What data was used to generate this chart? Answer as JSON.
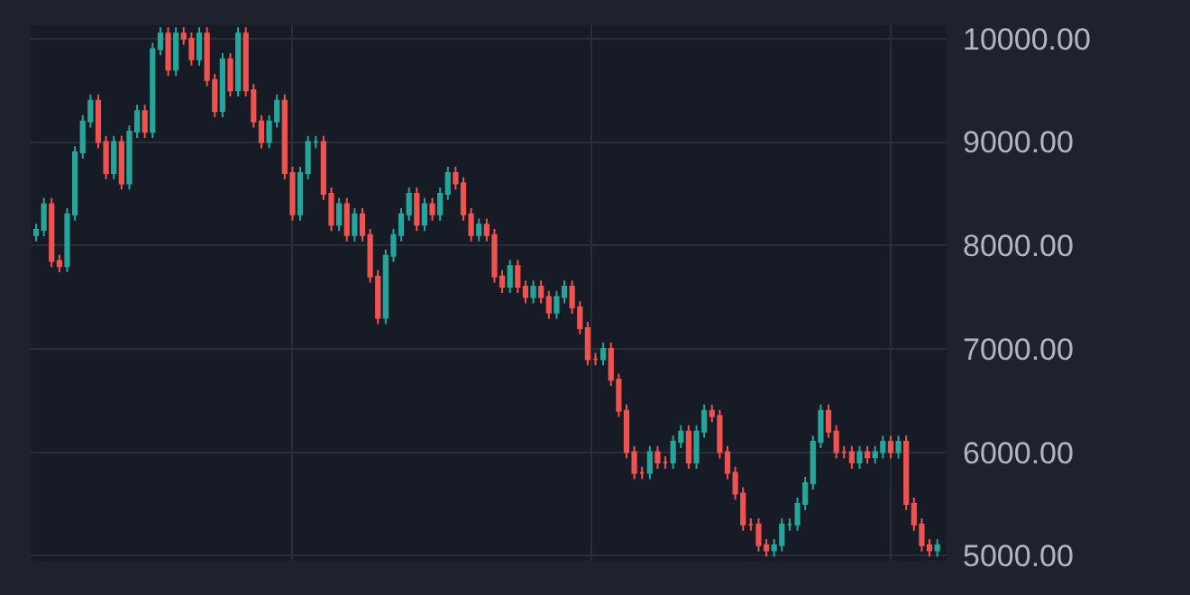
{
  "chart_data": {
    "type": "candlestick",
    "categories": [
      null,
      null,
      null,
      null,
      null,
      null,
      null,
      null,
      null,
      null,
      null,
      null,
      null,
      null,
      null,
      null,
      null,
      null,
      null,
      null,
      null,
      null,
      null,
      null,
      null,
      null,
      null,
      null,
      null,
      null,
      null,
      null,
      null,
      null,
      null,
      null,
      null,
      null,
      null,
      null,
      null,
      null,
      null,
      null,
      null,
      null,
      null,
      null,
      null,
      null,
      null,
      null,
      null,
      null,
      null,
      null,
      null,
      null,
      null,
      null,
      null,
      null,
      null,
      null,
      null,
      null,
      null,
      null,
      null,
      null,
      null,
      null,
      null,
      null,
      null,
      null,
      null,
      null,
      null,
      null,
      null,
      null,
      null,
      null,
      null,
      null,
      null,
      null,
      null,
      null,
      null,
      null,
      null,
      null,
      null,
      null,
      null,
      null,
      null,
      null,
      null,
      null,
      null,
      null,
      null,
      null,
      null,
      null,
      null,
      null,
      null,
      null,
      null,
      null,
      null,
      null,
      null
    ],
    "ohlc": [
      [
        8100,
        8210,
        8040,
        8150
      ],
      [
        8150,
        8460,
        8090,
        8400
      ],
      [
        8400,
        8460,
        7790,
        7850
      ],
      [
        7850,
        7910,
        7740,
        7800
      ],
      [
        7800,
        8360,
        7740,
        8300
      ],
      [
        8300,
        8960,
        8240,
        8900
      ],
      [
        8900,
        9260,
        8840,
        9200
      ],
      [
        9200,
        9460,
        9140,
        9400
      ],
      [
        9400,
        9460,
        8940,
        9000
      ],
      [
        9000,
        9060,
        8640,
        8700
      ],
      [
        8700,
        9060,
        8640,
        9000
      ],
      [
        9000,
        9060,
        8540,
        8600
      ],
      [
        8600,
        9160,
        8540,
        9100
      ],
      [
        9100,
        9360,
        9040,
        9300
      ],
      [
        9300,
        9360,
        9040,
        9100
      ],
      [
        9100,
        9960,
        9040,
        9900
      ],
      [
        9900,
        10110,
        9840,
        10050
      ],
      [
        10050,
        10110,
        9640,
        9700
      ],
      [
        9700,
        10110,
        9640,
        10050
      ],
      [
        10050,
        10110,
        9940,
        10000
      ],
      [
        10000,
        10060,
        9740,
        9800
      ],
      [
        9800,
        10110,
        9740,
        10050
      ],
      [
        10050,
        10110,
        9540,
        9600
      ],
      [
        9600,
        9660,
        9240,
        9300
      ],
      [
        9300,
        9860,
        9240,
        9800
      ],
      [
        9800,
        9860,
        9440,
        9500
      ],
      [
        9500,
        10110,
        9440,
        10050
      ],
      [
        10050,
        10110,
        9440,
        9500
      ],
      [
        9500,
        9560,
        9140,
        9200
      ],
      [
        9200,
        9260,
        8940,
        9000
      ],
      [
        9000,
        9260,
        8940,
        9200
      ],
      [
        9200,
        9460,
        9140,
        9400
      ],
      [
        9400,
        9460,
        8640,
        8700
      ],
      [
        8700,
        8760,
        8240,
        8300
      ],
      [
        8300,
        8760,
        8240,
        8700
      ],
      [
        8700,
        9060,
        8640,
        9000
      ],
      [
        9000,
        9060,
        8940,
        9000
      ],
      [
        9000,
        9060,
        8440,
        8500
      ],
      [
        8500,
        8560,
        8140,
        8200
      ],
      [
        8200,
        8460,
        8140,
        8400
      ],
      [
        8400,
        8460,
        8040,
        8100
      ],
      [
        8100,
        8360,
        8040,
        8300
      ],
      [
        8300,
        8360,
        8040,
        8100
      ],
      [
        8100,
        8160,
        7640,
        7700
      ],
      [
        7700,
        7760,
        7240,
        7300
      ],
      [
        7300,
        7960,
        7240,
        7900
      ],
      [
        7900,
        8160,
        7840,
        8100
      ],
      [
        8100,
        8360,
        8040,
        8300
      ],
      [
        8300,
        8560,
        8240,
        8500
      ],
      [
        8500,
        8560,
        8140,
        8200
      ],
      [
        8200,
        8460,
        8140,
        8400
      ],
      [
        8400,
        8460,
        8240,
        8300
      ],
      [
        8300,
        8560,
        8240,
        8500
      ],
      [
        8500,
        8760,
        8440,
        8700
      ],
      [
        8700,
        8760,
        8540,
        8600
      ],
      [
        8600,
        8660,
        8240,
        8300
      ],
      [
        8300,
        8360,
        8040,
        8100
      ],
      [
        8100,
        8260,
        8040,
        8200
      ],
      [
        8200,
        8260,
        8040,
        8100
      ],
      [
        8100,
        8160,
        7640,
        7700
      ],
      [
        7700,
        7760,
        7540,
        7600
      ],
      [
        7600,
        7860,
        7540,
        7800
      ],
      [
        7800,
        7860,
        7540,
        7600
      ],
      [
        7600,
        7660,
        7440,
        7500
      ],
      [
        7500,
        7660,
        7440,
        7600
      ],
      [
        7600,
        7660,
        7440,
        7500
      ],
      [
        7500,
        7560,
        7290,
        7350
      ],
      [
        7350,
        7560,
        7290,
        7500
      ],
      [
        7500,
        7660,
        7440,
        7600
      ],
      [
        7600,
        7660,
        7340,
        7400
      ],
      [
        7400,
        7460,
        7140,
        7200
      ],
      [
        7200,
        7260,
        6840,
        6900
      ],
      [
        6900,
        6960,
        6840,
        6900
      ],
      [
        6900,
        7060,
        6840,
        7000
      ],
      [
        7000,
        7060,
        6640,
        6700
      ],
      [
        6700,
        6760,
        6340,
        6400
      ],
      [
        6400,
        6460,
        5940,
        6000
      ],
      [
        6000,
        6060,
        5740,
        5800
      ],
      [
        5800,
        5860,
        5740,
        5800
      ],
      [
        5800,
        6060,
        5740,
        6000
      ],
      [
        6000,
        6060,
        5840,
        5900
      ],
      [
        5900,
        5960,
        5840,
        5900
      ],
      [
        5900,
        6160,
        5840,
        6100
      ],
      [
        6100,
        6260,
        6040,
        6200
      ],
      [
        6200,
        6260,
        5840,
        5900
      ],
      [
        5900,
        6260,
        5840,
        6200
      ],
      [
        6200,
        6460,
        6140,
        6400
      ],
      [
        6400,
        6460,
        6290,
        6350
      ],
      [
        6350,
        6410,
        5940,
        6000
      ],
      [
        6000,
        6060,
        5740,
        5800
      ],
      [
        5800,
        5860,
        5540,
        5600
      ],
      [
        5600,
        5660,
        5240,
        5300
      ],
      [
        5300,
        5360,
        5240,
        5300
      ],
      [
        5300,
        5360,
        5040,
        5100
      ],
      [
        5100,
        5160,
        4990,
        5050
      ],
      [
        5050,
        5160,
        4990,
        5100
      ],
      [
        5100,
        5360,
        5040,
        5300
      ],
      [
        5300,
        5360,
        5240,
        5300
      ],
      [
        5300,
        5560,
        5240,
        5500
      ],
      [
        5500,
        5760,
        5440,
        5700
      ],
      [
        5700,
        6160,
        5640,
        6100
      ],
      [
        6100,
        6460,
        6040,
        6400
      ],
      [
        6400,
        6460,
        6140,
        6200
      ],
      [
        6200,
        6260,
        5940,
        6000
      ],
      [
        6000,
        6060,
        5940,
        6000
      ],
      [
        6000,
        6060,
        5840,
        5900
      ],
      [
        5900,
        6060,
        5840,
        6000
      ],
      [
        6000,
        6060,
        5890,
        5950
      ],
      [
        5950,
        6060,
        5890,
        6000
      ],
      [
        6000,
        6160,
        5940,
        6100
      ],
      [
        6100,
        6160,
        5940,
        6000
      ],
      [
        6000,
        6160,
        5940,
        6100
      ],
      [
        6100,
        6160,
        5440,
        5500
      ],
      [
        5500,
        5560,
        5240,
        5300
      ],
      [
        5300,
        5360,
        5040,
        5100
      ],
      [
        5100,
        5160,
        4990,
        5050
      ],
      [
        5050,
        5160,
        4990,
        5100
      ]
    ],
    "ylim": [
      4950,
      10130
    ],
    "yticks": [
      {
        "value": 5000,
        "label": "5000.00"
      },
      {
        "value": 6000,
        "label": "6000.00"
      },
      {
        "value": 7000,
        "label": "7000.00"
      },
      {
        "value": 8000,
        "label": "8000.00"
      },
      {
        "value": 9000,
        "label": "9000.00"
      },
      {
        "value": 10000,
        "label": "10000.00"
      }
    ],
    "grid": true,
    "tick_labels": "y"
  }
}
